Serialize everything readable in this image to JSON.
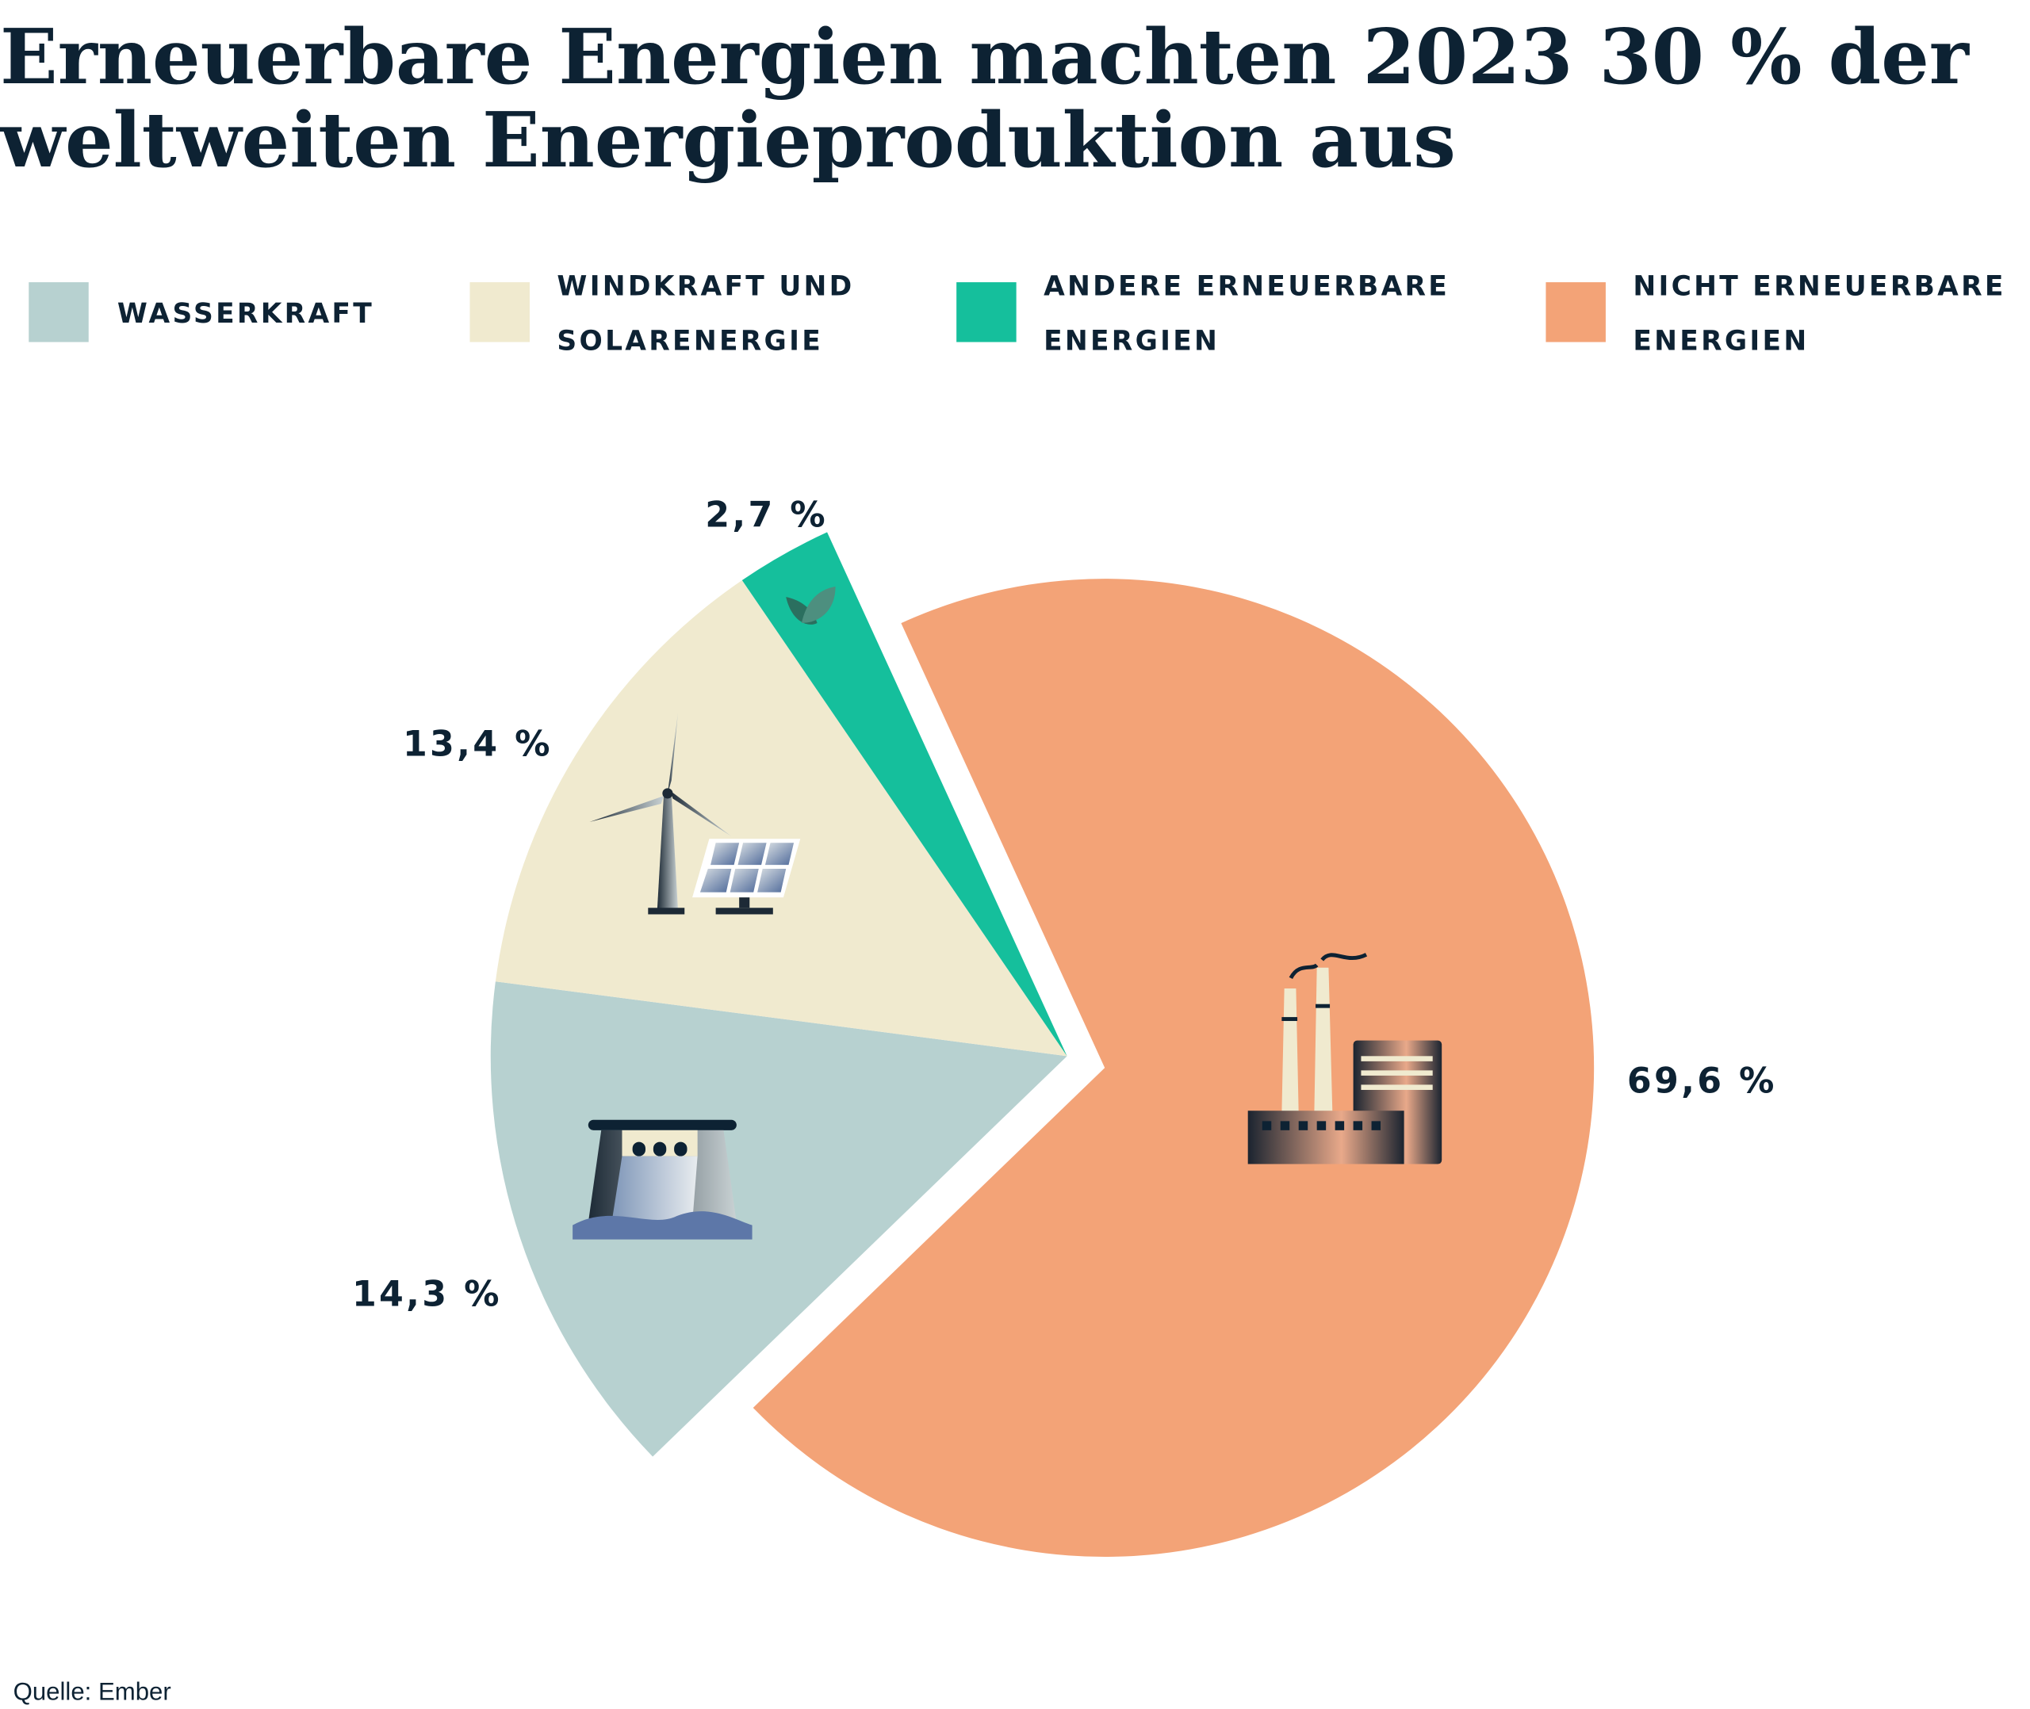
{
  "chart_data": {
    "type": "pie",
    "title_lines": [
      "Erneuerbare Energien machten 2023 30 % der",
      "weltweiten Energieproduktion aus"
    ],
    "legend_placement": "top",
    "slices": [
      {
        "label_lines": [
          "NICHT ERNEUERBARE",
          "ENERGIEN"
        ],
        "value": 69.6,
        "display": "69,6 %",
        "color": "#f3a377",
        "icon": "factory-icon",
        "exploded": true
      },
      {
        "label_lines": [
          "WASSERKRAFT"
        ],
        "value": 14.3,
        "display": "14,3 %",
        "color": "#b7d1d0",
        "icon": "hydro-dam-icon"
      },
      {
        "label_lines": [
          "WINDKRAFT UND",
          "SOLARENERGIE"
        ],
        "value": 13.4,
        "display": "13,4 %",
        "color": "#f0eacf",
        "icon": "wind-solar-icon"
      },
      {
        "label_lines": [
          "ANDERE ERNEUERBARE",
          "ENERGIEN"
        ],
        "value": 2.7,
        "display": "2,7 %",
        "color": "#15bf9c",
        "icon": "leaf-icon"
      }
    ],
    "legend_order": [
      1,
      2,
      3,
      0
    ]
  },
  "source": "Quelle: Ember"
}
